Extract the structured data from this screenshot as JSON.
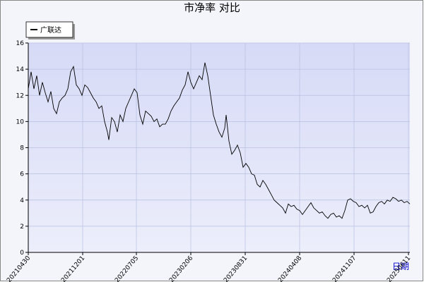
{
  "chart_data": {
    "type": "line",
    "title": "市净率  对比",
    "x_label": "日期",
    "xlim": [
      0,
      540
    ],
    "xticks": [
      {
        "value": 0,
        "label": "20210430"
      },
      {
        "value": 77,
        "label": "20211201"
      },
      {
        "value": 153,
        "label": "20220705"
      },
      {
        "value": 230,
        "label": "20230206"
      },
      {
        "value": 307,
        "label": "20230831"
      },
      {
        "value": 384,
        "label": "20240408"
      },
      {
        "value": 461,
        "label": "20241107"
      },
      {
        "value": 538,
        "label": "20250611"
      }
    ],
    "ylim": [
      0,
      16
    ],
    "yticks": [
      0,
      2,
      4,
      6,
      8,
      10,
      12,
      14,
      16
    ],
    "grid": true,
    "legend": "top-left",
    "x": [
      0,
      4,
      8,
      12,
      16,
      20,
      24,
      28,
      32,
      36,
      40,
      44,
      48,
      52,
      56,
      60,
      64,
      68,
      72,
      76,
      80,
      84,
      88,
      92,
      96,
      100,
      104,
      108,
      112,
      114,
      118,
      122,
      126,
      130,
      134,
      138,
      142,
      146,
      150,
      154,
      158,
      162,
      166,
      170,
      174,
      178,
      182,
      186,
      190,
      194,
      198,
      202,
      206,
      210,
      214,
      218,
      222,
      226,
      230,
      234,
      238,
      242,
      246,
      250,
      254,
      258,
      262,
      266,
      270,
      274,
      278,
      280,
      284,
      288,
      292,
      296,
      300,
      304,
      308,
      312,
      316,
      320,
      324,
      328,
      332,
      336,
      340,
      344,
      348,
      352,
      356,
      360,
      364,
      368,
      372,
      376,
      380,
      384,
      388,
      392,
      396,
      400,
      404,
      408,
      412,
      416,
      420,
      424,
      428,
      432,
      436,
      440,
      444,
      448,
      452,
      456,
      460,
      464,
      468,
      472,
      476,
      480,
      484,
      488,
      492,
      496,
      500,
      504,
      508,
      512,
      516,
      520,
      524,
      528,
      532,
      536,
      540
    ],
    "series": [
      {
        "name": "广联达",
        "color": "#000000",
        "values": [
          12.5,
          13.8,
          12.5,
          13.5,
          12.0,
          13.0,
          12.2,
          11.5,
          12.3,
          11.0,
          10.6,
          11.5,
          11.8,
          12.0,
          12.5,
          13.8,
          14.2,
          12.8,
          12.5,
          12.0,
          12.8,
          12.6,
          12.2,
          11.8,
          11.5,
          11.0,
          11.2,
          10.0,
          9.2,
          8.6,
          10.3,
          10.0,
          9.2,
          10.5,
          10.0,
          11.0,
          11.5,
          12.0,
          12.5,
          12.2,
          10.5,
          9.8,
          10.8,
          10.6,
          10.4,
          10.0,
          10.2,
          9.6,
          9.8,
          9.8,
          10.2,
          10.8,
          11.2,
          11.5,
          11.8,
          12.4,
          12.8,
          13.8,
          13.0,
          12.5,
          13.0,
          13.5,
          13.2,
          14.5,
          13.5,
          12.0,
          10.5,
          9.8,
          9.2,
          8.8,
          9.5,
          10.5,
          8.5,
          7.5,
          7.8,
          8.2,
          7.6,
          6.5,
          6.8,
          6.5,
          6.0,
          5.9,
          5.2,
          5.0,
          5.5,
          5.2,
          4.8,
          4.4,
          4.0,
          3.8,
          3.6,
          3.4,
          3.0,
          3.7,
          3.5,
          3.6,
          3.3,
          3.2,
          2.9,
          3.2,
          3.5,
          3.8,
          3.4,
          3.2,
          3.0,
          3.1,
          2.8,
          2.6,
          2.9,
          3.0,
          2.7,
          2.8,
          2.6,
          3.2,
          4.0,
          4.1,
          3.9,
          3.8,
          3.5,
          3.6,
          3.4,
          3.6,
          3.0,
          3.1,
          3.5,
          3.8,
          3.9,
          3.7,
          4.0,
          3.9,
          4.2,
          4.1,
          3.9,
          4.0,
          3.8,
          3.9,
          3.7
        ]
      }
    ]
  }
}
